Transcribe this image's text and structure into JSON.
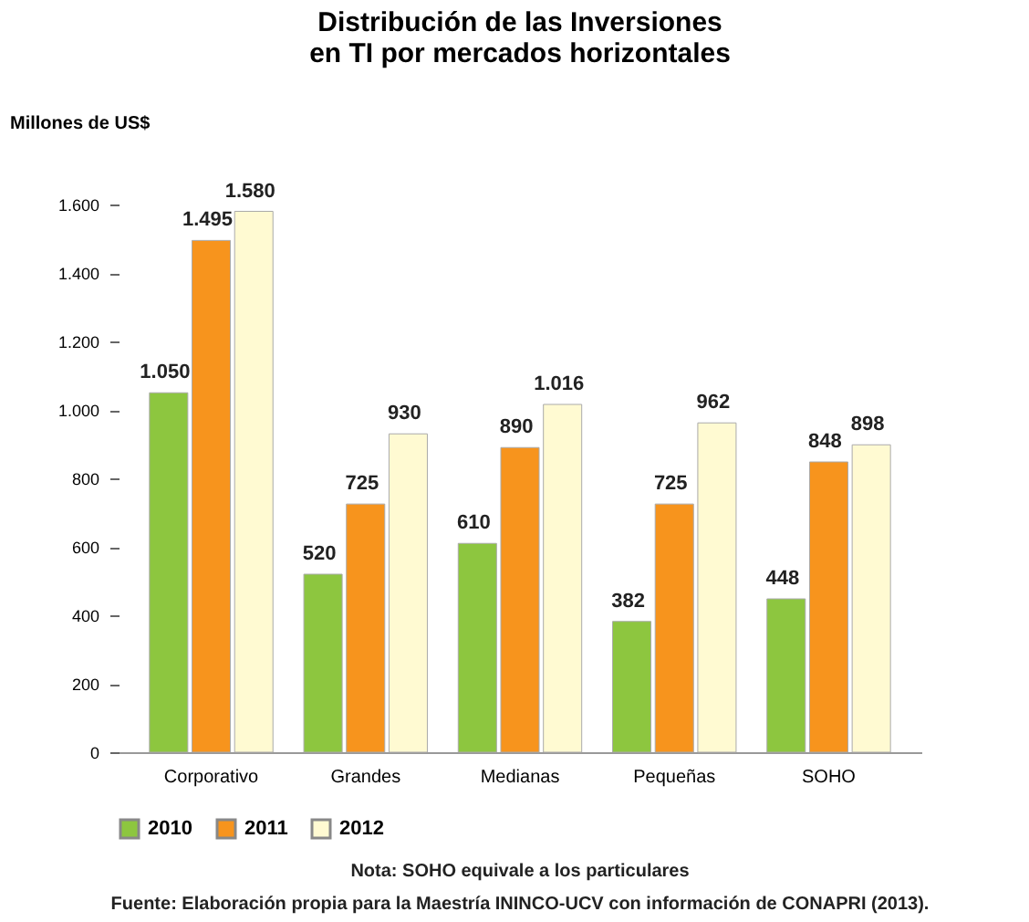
{
  "chart_data": {
    "type": "bar",
    "title": "Distribución de las Inversiones\nen TI por mercados horizontales",
    "ylabel": "Millones de US$",
    "categories": [
      "Corporativo",
      "Grandes",
      "Medianas",
      "Pequeñas",
      "SOHO"
    ],
    "series": [
      {
        "name": "2010",
        "color": "#8dc63f",
        "values": [
          1050,
          520,
          610,
          382,
          448
        ],
        "value_labels": [
          "1.050",
          "520",
          "610",
          "382",
          "448"
        ]
      },
      {
        "name": "2011",
        "color": "#f7941d",
        "values": [
          1495,
          725,
          890,
          725,
          848
        ],
        "value_labels": [
          "1.495",
          "725",
          "890",
          "725",
          "848"
        ]
      },
      {
        "name": "2012",
        "color": "#fffad2",
        "values": [
          1580,
          930,
          1016,
          962,
          898
        ],
        "value_labels": [
          "1.580",
          "930",
          "1.016",
          "962",
          "898"
        ]
      }
    ],
    "ylim": [
      0,
      1600
    ],
    "yticks": [
      0,
      200,
      400,
      600,
      800,
      {
        "value": 1000,
        "label": "1.000"
      },
      {
        "value": 1200,
        "label": "1.200"
      },
      {
        "value": 1400,
        "label": "1.400"
      },
      {
        "value": 1600,
        "label": "1.600"
      }
    ],
    "grid": false,
    "legend": "bottom",
    "annotations": [
      "Nota: SOHO equivale a los particulares",
      "Fuente: Elaboración propia para la Maestría ININCO-UCV con información de CONAPRI (2013)."
    ]
  }
}
